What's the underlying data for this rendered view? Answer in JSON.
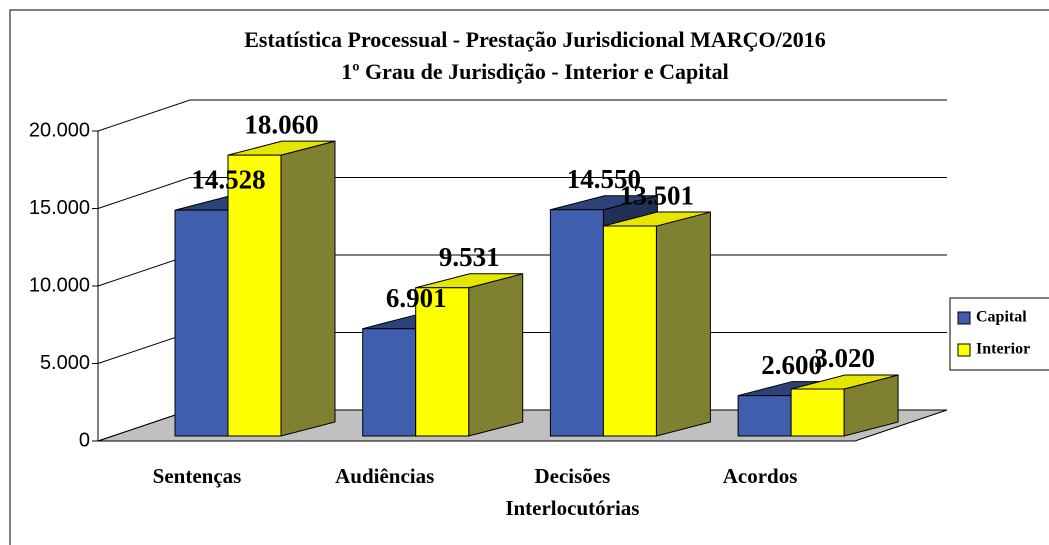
{
  "chart_data": {
    "type": "bar3d",
    "title": "Estatística Processual - Prestação Jurisdicional MARÇO/2016",
    "subtitle": "1º Grau de Jurisdição - Interior e Capital",
    "categories": [
      "Sentenças",
      "Audiências",
      "Decisões Interlocutórias",
      "Acordos"
    ],
    "series": [
      {
        "name": "Capital",
        "color": "#3f5fae",
        "values": [
          14528,
          6901,
          14550,
          2600
        ],
        "value_labels": [
          "14.528",
          "6.901",
          "14.550",
          "2.600"
        ]
      },
      {
        "name": "Interior",
        "color": "#ffff00",
        "values": [
          18060,
          9531,
          13501,
          3020
        ],
        "value_labels": [
          "18.060",
          "9.531",
          "13.501",
          "3.020"
        ]
      }
    ],
    "ylim": [
      0,
      20000
    ],
    "yticks": [
      0,
      {
        "value": 5000,
        "label": "5.000"
      },
      {
        "value": 10000,
        "label": "10.000"
      },
      {
        "value": 15000,
        "label": "15.000"
      },
      {
        "value": 20000,
        "label": "20.000"
      }
    ],
    "grid": true,
    "legend": "right"
  }
}
